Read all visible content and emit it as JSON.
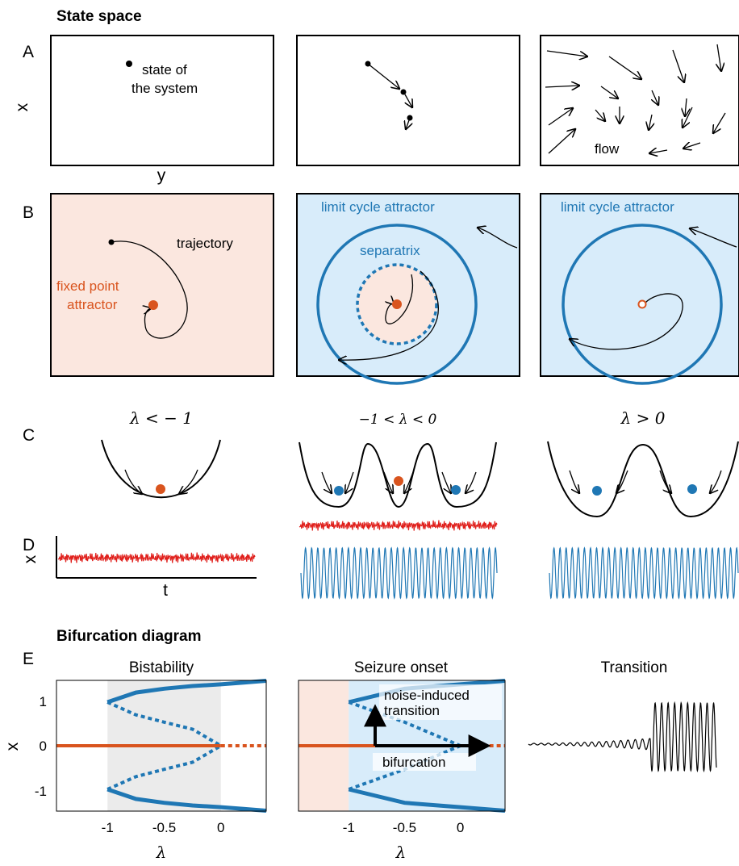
{
  "colors": {
    "blue": "#1f77b4",
    "red": "#d9541e",
    "red_signal": "#e0201c",
    "bg_red": "#fbe7df",
    "bg_blue": "#d8ecfa",
    "bg_gray": "#ebebeb"
  },
  "section_titles": {
    "state_space": "State space",
    "bifurcation": "Bifurcation diagram"
  },
  "panel_letters": {
    "a": "A",
    "b": "B",
    "c": "C",
    "d": "D",
    "e": "E"
  },
  "panel_a": {
    "x_label": "x",
    "y_label": "y",
    "state_label_1": "state of",
    "state_label_2": "the system",
    "flow_label": "flow"
  },
  "panel_b": {
    "trajectory_label": "trajectory",
    "fixed_point_label_1": "fixed point",
    "fixed_point_label_2": "attractor",
    "limit_cycle_label": "limit cycle attractor",
    "separatrix_label": "separatrix"
  },
  "panel_c": {
    "label_left": "λ < − 1",
    "label_mid": "−1 < λ < 0",
    "label_right": "λ > 0"
  },
  "panel_d": {
    "x_label": "x",
    "t_label": "t"
  },
  "panel_e": {
    "titles": [
      "Bistability",
      "Seizure onset",
      "Transition"
    ],
    "y_label": "x",
    "x_label": "λ",
    "y_ticks": [
      "1",
      "0",
      "-1"
    ],
    "x_ticks": [
      "-1",
      "-0.5",
      "0"
    ],
    "noise_label_1": "noise-induced",
    "noise_label_2": "transition",
    "bifurcation_label": "bifurcation"
  },
  "chart_data": [
    {
      "type": "line",
      "title": "Bistability",
      "xlabel": "λ",
      "ylabel": "x",
      "xlim": [
        -1.45,
        0.4
      ],
      "ylim": [
        -1.5,
        1.5
      ],
      "x_ticks": [
        -1,
        -0.5,
        0
      ],
      "y_ticks": [
        -1,
        0,
        1
      ],
      "shaded_region": [
        -1,
        0
      ],
      "series": [
        {
          "values": [
            [
              -1,
              1.0
            ],
            [
              -0.75,
              1.22
            ],
            [
              -0.5,
              1.31
            ],
            [
              -0.25,
              1.37
            ],
            [
              0,
              1.41
            ],
            [
              0.2,
              1.45
            ],
            [
              0.4,
              1.49
            ]
          ]
        },
        {
          "values": [
            [
              -1,
              1.0
            ],
            [
              -0.75,
              0.71
            ],
            [
              -0.5,
              0.54
            ],
            [
              -0.25,
              0.38
            ],
            [
              0,
              0
            ]
          ]
        },
        {
          "values": [
            [
              -1.45,
              0
            ],
            [
              0,
              0
            ]
          ]
        },
        {
          "values": [
            [
              0,
              0
            ],
            [
              0.4,
              0
            ]
          ]
        }
      ]
    },
    {
      "type": "line",
      "title": "Seizure onset",
      "xlabel": "λ",
      "ylabel": "x",
      "xlim": [
        -1.45,
        0.4
      ],
      "ylim": [
        -1.5,
        1.5
      ],
      "x_ticks": [
        -1,
        -0.5,
        0
      ],
      "y_ticks": [
        -1,
        0,
        1
      ],
      "series": [
        {
          "values": [
            [
              -1,
              1.0
            ],
            [
              -0.5,
              1.31
            ],
            [
              0,
              1.41
            ],
            [
              0.4,
              1.49
            ]
          ]
        },
        {
          "values": [
            [
              -1,
              1.0
            ],
            [
              -0.5,
              0.54
            ],
            [
              0,
              0
            ]
          ]
        },
        {
          "values": [
            [
              -1.45,
              0
            ],
            [
              0,
              0
            ]
          ]
        },
        {
          "values": [
            [
              0,
              0
            ],
            [
              0.4,
              0
            ]
          ]
        }
      ]
    }
  ]
}
